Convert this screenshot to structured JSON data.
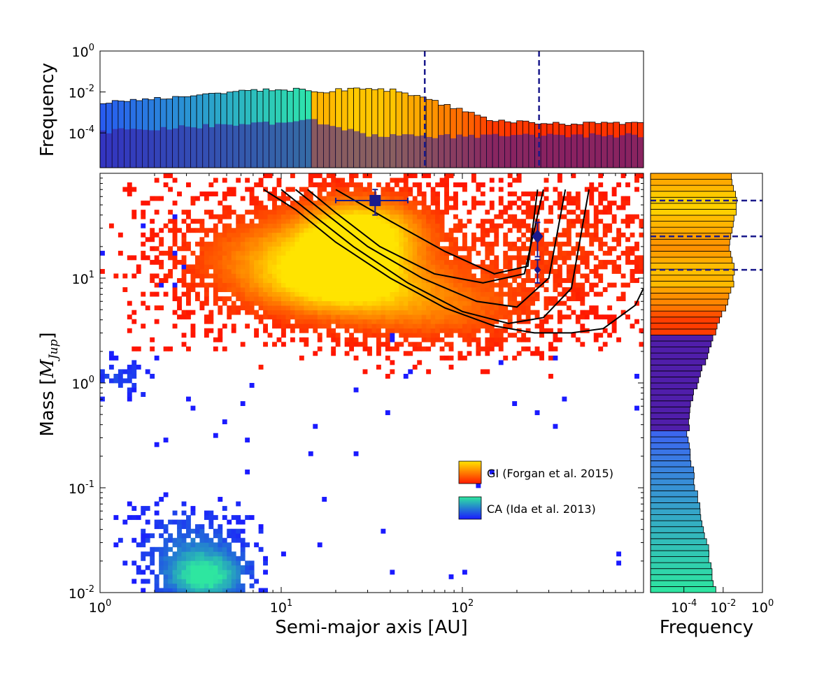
{
  "chart_data": {
    "type": "heatmap",
    "xscale": "log",
    "yscale": "log",
    "xlabel": "Semi-major axis [AU]",
    "ylabel_text": "Mass [",
    "ylabel_math": "M",
    "ylabel_sub": "Jup",
    "ylabel_close": "]",
    "xlim": [
      1,
      1000
    ],
    "ylim": [
      0.01,
      100
    ],
    "x_ticks": [
      {
        "base": "10",
        "exp": "0"
      },
      {
        "base": "10",
        "exp": "1"
      },
      {
        "base": "10",
        "exp": "2"
      }
    ],
    "y_ticks": [
      {
        "base": "10",
        "exp": "-2"
      },
      {
        "base": "10",
        "exp": "-1"
      },
      {
        "base": "10",
        "exp": "0"
      },
      {
        "base": "10",
        "exp": "1"
      }
    ],
    "series": [
      {
        "name": "GI (Forgan et al. 2015)",
        "colormap": "autumn",
        "colors": [
          "#ff1a00",
          "#ffe400"
        ]
      },
      {
        "name": "CA (Ida et al. 2013)",
        "colormap": "winter",
        "colors": [
          "#1a1aff",
          "#2ee6a0"
        ]
      }
    ],
    "contour_color": "#000000",
    "contours": [
      {
        "a": [
          8,
          12,
          20,
          40,
          80,
          150,
          250,
          400,
          600,
          900,
          1000
        ],
        "m": [
          70,
          45,
          22,
          10,
          5.2,
          3.5,
          3.0,
          3.0,
          3.3,
          5.5,
          8
        ]
      },
      {
        "a": [
          10,
          15,
          25,
          50,
          100,
          180,
          280,
          400,
          500
        ],
        "m": [
          70,
          40,
          20,
          9,
          4.8,
          3.7,
          4.2,
          8,
          70
        ]
      },
      {
        "a": [
          12,
          18,
          30,
          60,
          120,
          200,
          300,
          370
        ],
        "m": [
          70,
          40,
          20,
          10,
          6,
          5.3,
          10,
          70
        ]
      },
      {
        "a": [
          14,
          20,
          35,
          70,
          130,
          220,
          280
        ],
        "m": [
          70,
          42,
          20,
          11,
          9,
          11,
          70
        ]
      },
      {
        "a": [
          20,
          40,
          80,
          150,
          230,
          260
        ],
        "m": [
          70,
          35,
          18,
          11,
          13,
          70
        ]
      }
    ],
    "observations": [
      {
        "name": "square-planet",
        "a": 33,
        "a_err_low": 13,
        "a_err_high": 17,
        "m": 55,
        "m_err_low": 15,
        "m_err_high": 15,
        "marker": "square",
        "color": "#1a1a8c"
      },
      {
        "name": "diamond-planet-large",
        "a": 260,
        "a_err_low": 0,
        "a_err_high": 0,
        "m": 25,
        "m_err_low": 9,
        "m_err_high": 9,
        "marker": "diamond",
        "color": "#1a1a8c"
      },
      {
        "name": "diamond-planet-small",
        "a": 260,
        "a_err_low": 0,
        "a_err_high": 0,
        "m": 12,
        "m_err_low": 3,
        "m_err_high": 3,
        "marker": "diamond-small",
        "color": "#1a1a8c"
      }
    ],
    "top_histogram": {
      "ylabel": "Frequency",
      "yscale": "log",
      "ylim": [
        2e-06,
        1
      ],
      "y_ticks": [
        {
          "base": "10",
          "exp": "0"
        },
        {
          "base": "10",
          "exp": "-2"
        },
        {
          "base": "10",
          "exp": "-4"
        }
      ],
      "ca_profile": {
        "a_points": [
          1,
          2,
          4,
          8,
          15
        ],
        "freq_points": [
          0.003,
          0.0045,
          0.008,
          0.013,
          0.013
        ]
      },
      "gi_profile": {
        "a_points": [
          15,
          25,
          45,
          70,
          150,
          300,
          1000
        ],
        "freq_points": [
          0.009,
          0.015,
          0.012,
          0.0035,
          0.0004,
          0.00028,
          0.0003
        ]
      },
      "purple_profile": {
        "a_points": [
          1,
          15,
          30,
          100,
          1000
        ],
        "freq_points": [
          0.00012,
          0.0004,
          8e-05,
          7e-05,
          8e-05
        ]
      },
      "vlines": [
        62,
        265
      ]
    },
    "right_histogram": {
      "xlabel": "Frequency",
      "xscale": "log",
      "xlim": [
        2e-06,
        1
      ],
      "x_ticks": [
        {
          "base": "10",
          "exp": "-4"
        },
        {
          "base": "10",
          "exp": "-2"
        },
        {
          "base": "10",
          "exp": "0"
        }
      ],
      "profile": {
        "m_points": [
          0.01,
          0.03,
          0.1,
          0.3,
          0.7,
          1.5,
          3,
          8,
          12,
          20,
          50,
          80
        ],
        "freq_points": [
          0.004,
          0.0015,
          0.0004,
          0.00015,
          0.00025,
          0.0011,
          0.004,
          0.03,
          0.04,
          0.02,
          0.05,
          0.03
        ]
      },
      "hlines": [
        55,
        25,
        12
      ]
    }
  },
  "legend": {
    "gi_label": "GI (Forgan et al. 2015)",
    "ca_label": "CA (Ida et al. 2013)"
  }
}
